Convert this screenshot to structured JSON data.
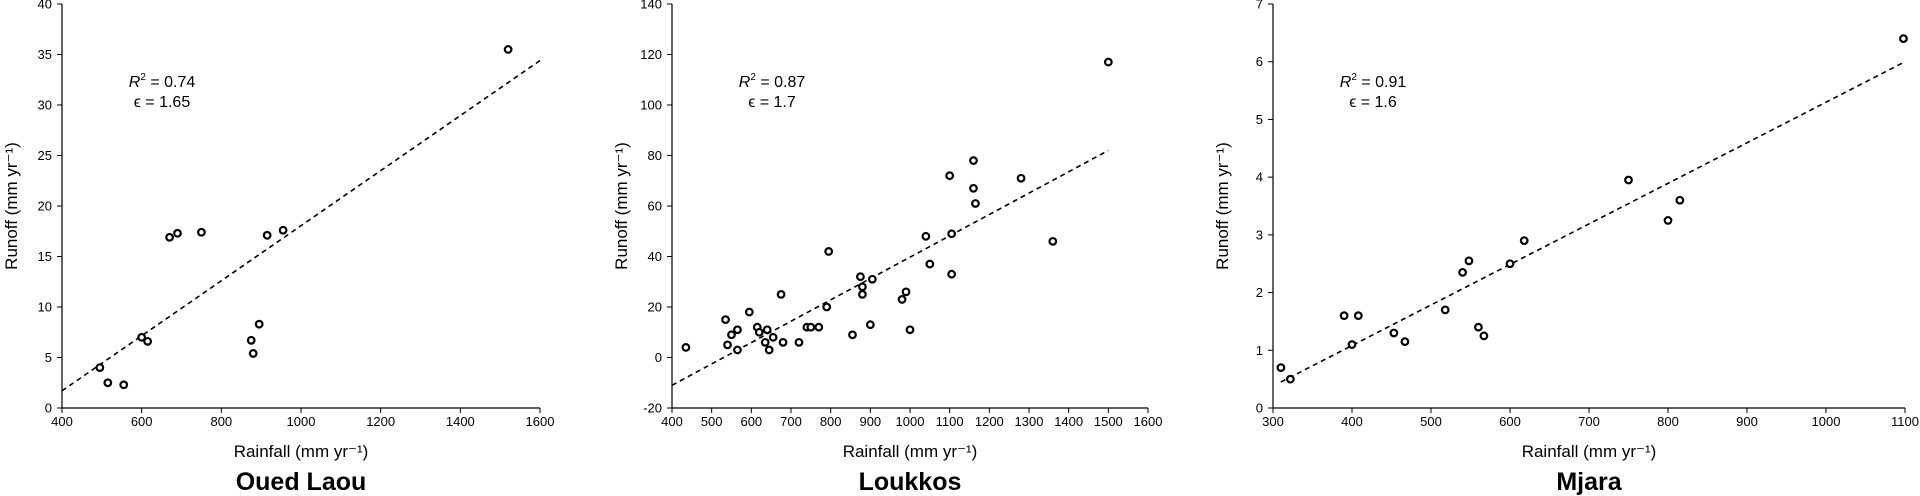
{
  "chart_data": [
    {
      "type": "scatter",
      "title": "Oued Laou",
      "xlabel": "Rainfall (mm yr⁻¹)",
      "ylabel": "Runoff (mm yr⁻¹)",
      "xlim": [
        400,
        1600
      ],
      "ylim": [
        0,
        40
      ],
      "xticks": [
        400,
        600,
        800,
        1000,
        1200,
        1400,
        1600
      ],
      "yticks": [
        0,
        5,
        10,
        15,
        20,
        25,
        30,
        35,
        40
      ],
      "annotation": {
        "r2": "0.74",
        "epsilon": "ϵ = 1.65"
      },
      "trendline": {
        "x": [
          400,
          1600
        ],
        "y": [
          1.7,
          34.4
        ]
      },
      "points": [
        {
          "x": 495,
          "y": 4.0
        },
        {
          "x": 515,
          "y": 2.5
        },
        {
          "x": 555,
          "y": 2.3
        },
        {
          "x": 600,
          "y": 7.0
        },
        {
          "x": 615,
          "y": 6.6
        },
        {
          "x": 670,
          "y": 16.9
        },
        {
          "x": 690,
          "y": 17.3
        },
        {
          "x": 750,
          "y": 17.4
        },
        {
          "x": 875,
          "y": 6.7
        },
        {
          "x": 880,
          "y": 5.4
        },
        {
          "x": 895,
          "y": 8.3
        },
        {
          "x": 915,
          "y": 17.1
        },
        {
          "x": 955,
          "y": 17.6
        },
        {
          "x": 1520,
          "y": 35.5
        }
      ]
    },
    {
      "type": "scatter",
      "title": "Loukkos",
      "xlabel": "Rainfall (mm yr⁻¹)",
      "ylabel": "Runoff (mm yr⁻¹)",
      "xlim": [
        400,
        1600
      ],
      "ylim": [
        -20,
        140
      ],
      "xticks": [
        400,
        500,
        600,
        700,
        800,
        900,
        1000,
        1100,
        1200,
        1300,
        1400,
        1500,
        1600
      ],
      "yticks": [
        -20,
        0,
        20,
        40,
        60,
        80,
        100,
        120,
        140
      ],
      "annotation": {
        "r2": "0.87",
        "epsilon": "ϵ = 1.7"
      },
      "trendline": {
        "x": [
          400,
          1500
        ],
        "y": [
          -11,
          82
        ]
      },
      "points": [
        {
          "x": 435,
          "y": 4
        },
        {
          "x": 535,
          "y": 15
        },
        {
          "x": 540,
          "y": 5
        },
        {
          "x": 550,
          "y": 9
        },
        {
          "x": 565,
          "y": 11
        },
        {
          "x": 565,
          "y": 3
        },
        {
          "x": 595,
          "y": 18
        },
        {
          "x": 615,
          "y": 12
        },
        {
          "x": 620,
          "y": 10
        },
        {
          "x": 635,
          "y": 6
        },
        {
          "x": 640,
          "y": 11
        },
        {
          "x": 645,
          "y": 3
        },
        {
          "x": 655,
          "y": 8
        },
        {
          "x": 675,
          "y": 25
        },
        {
          "x": 680,
          "y": 6
        },
        {
          "x": 720,
          "y": 6
        },
        {
          "x": 740,
          "y": 12
        },
        {
          "x": 750,
          "y": 12
        },
        {
          "x": 770,
          "y": 12
        },
        {
          "x": 790,
          "y": 20
        },
        {
          "x": 795,
          "y": 42
        },
        {
          "x": 855,
          "y": 9
        },
        {
          "x": 875,
          "y": 32
        },
        {
          "x": 880,
          "y": 25
        },
        {
          "x": 880,
          "y": 28
        },
        {
          "x": 900,
          "y": 13
        },
        {
          "x": 905,
          "y": 31
        },
        {
          "x": 980,
          "y": 23
        },
        {
          "x": 990,
          "y": 26
        },
        {
          "x": 1000,
          "y": 11
        },
        {
          "x": 1040,
          "y": 48
        },
        {
          "x": 1050,
          "y": 37
        },
        {
          "x": 1100,
          "y": 72
        },
        {
          "x": 1105,
          "y": 49
        },
        {
          "x": 1105,
          "y": 33
        },
        {
          "x": 1160,
          "y": 67
        },
        {
          "x": 1160,
          "y": 78
        },
        {
          "x": 1165,
          "y": 61
        },
        {
          "x": 1280,
          "y": 71
        },
        {
          "x": 1360,
          "y": 46
        },
        {
          "x": 1500,
          "y": 117
        }
      ]
    },
    {
      "type": "scatter",
      "title": "Mjara",
      "xlabel": "Rainfall (mm yr⁻¹)",
      "ylabel": "Runoff (mm yr⁻¹)",
      "xlim": [
        300,
        1100
      ],
      "ylim": [
        0,
        7
      ],
      "xticks": [
        300,
        400,
        500,
        600,
        700,
        800,
        900,
        1000,
        1100
      ],
      "yticks": [
        0,
        1,
        2,
        3,
        4,
        5,
        6,
        7
      ],
      "annotation": {
        "r2": "0.91",
        "epsilon": "ϵ = 1.6"
      },
      "trendline": {
        "x": [
          310,
          1100
        ],
        "y": [
          0.45,
          6.0
        ]
      },
      "points": [
        {
          "x": 310,
          "y": 0.7
        },
        {
          "x": 322,
          "y": 0.5
        },
        {
          "x": 390,
          "y": 1.6
        },
        {
          "x": 400,
          "y": 1.1
        },
        {
          "x": 408,
          "y": 1.6
        },
        {
          "x": 453,
          "y": 1.3
        },
        {
          "x": 467,
          "y": 1.15
        },
        {
          "x": 518,
          "y": 1.7
        },
        {
          "x": 540,
          "y": 2.35
        },
        {
          "x": 548,
          "y": 2.55
        },
        {
          "x": 560,
          "y": 1.4
        },
        {
          "x": 567,
          "y": 1.25
        },
        {
          "x": 600,
          "y": 2.5
        },
        {
          "x": 618,
          "y": 2.9
        },
        {
          "x": 750,
          "y": 3.95
        },
        {
          "x": 800,
          "y": 3.25
        },
        {
          "x": 815,
          "y": 3.6
        },
        {
          "x": 1098,
          "y": 6.4
        }
      ]
    }
  ]
}
